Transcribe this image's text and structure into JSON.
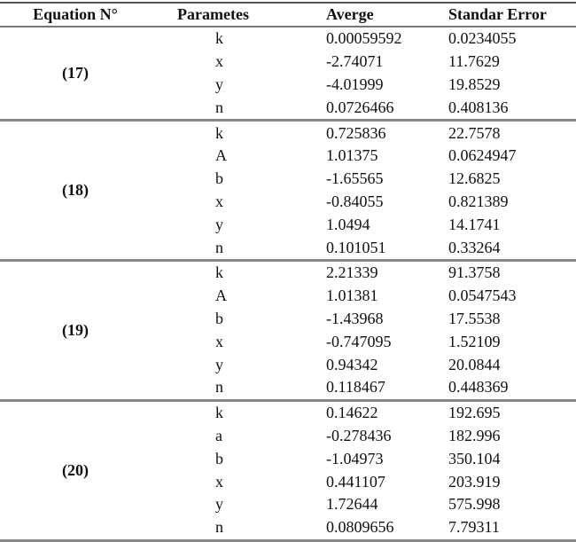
{
  "headers": {
    "equation": "Equation N°",
    "parameters": "Parametes",
    "average": "Averge",
    "stderr": "Standar Error"
  },
  "groups": [
    {
      "equation": "(17)",
      "rows": [
        [
          "k",
          "0.00059592",
          "0.0234055"
        ],
        [
          "x",
          "-2.74071",
          "11.7629"
        ],
        [
          "y",
          "-4.01999",
          "19.8529"
        ],
        [
          "n",
          "0.0726466",
          "0.408136"
        ]
      ]
    },
    {
      "equation": "(18)",
      "rows": [
        [
          "k",
          "0.725836",
          "22.7578"
        ],
        [
          "A",
          "1.01375",
          "0.0624947"
        ],
        [
          "b",
          "-1.65565",
          "12.6825"
        ],
        [
          "x",
          "-0.84055",
          "0.821389"
        ],
        [
          "y",
          "1.0494",
          "14.1741"
        ],
        [
          "n",
          "0.101051",
          "0.33264"
        ]
      ]
    },
    {
      "equation": "(19)",
      "rows": [
        [
          "k",
          "2.21339",
          "91.3758"
        ],
        [
          "A",
          "1.01381",
          "0.0547543"
        ],
        [
          "b",
          "-1.43968",
          "17.5538"
        ],
        [
          "x",
          "-0.747095",
          "1.52109"
        ],
        [
          "y",
          "0.94342",
          "20.0844"
        ],
        [
          "n",
          "0.118467",
          "0.448369"
        ]
      ]
    },
    {
      "equation": "(20)",
      "rows": [
        [
          "k",
          "0.14622",
          "192.695"
        ],
        [
          "a",
          "-0.278436",
          "182.996"
        ],
        [
          "b",
          "-1.04973",
          "350.104"
        ],
        [
          "x",
          "0.441107",
          "203.919"
        ],
        [
          "y",
          "1.72644",
          "575.998"
        ],
        [
          "n",
          "0.0809656",
          "7.79311"
        ]
      ]
    }
  ]
}
